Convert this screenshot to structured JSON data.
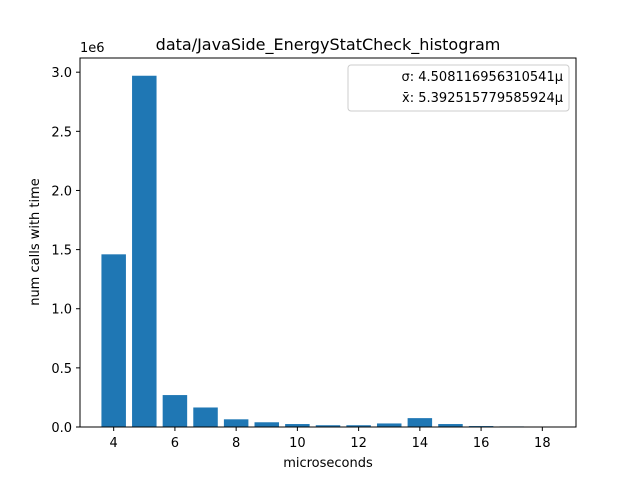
{
  "chart_data": {
    "type": "bar",
    "title": "data/JavaSide_EnergyStatCheck_histogram",
    "xlabel": "microseconds",
    "ylabel": "num calls with time",
    "y_offset_label": "1e6",
    "x": [
      4,
      5,
      6,
      7,
      8,
      9,
      10,
      11,
      12,
      13,
      14,
      15,
      16,
      17,
      18
    ],
    "values": [
      1460000,
      2970000,
      270000,
      165000,
      65000,
      40000,
      25000,
      15000,
      15000,
      30000,
      75000,
      25000,
      8000,
      5000,
      2000
    ],
    "xlim": [
      2.9,
      19.1
    ],
    "ylim": [
      0,
      3120000
    ],
    "x_ticks": [
      4,
      6,
      8,
      10,
      12,
      14,
      16,
      18
    ],
    "y_ticks": [
      0,
      500000,
      1000000,
      1500000,
      2000000,
      2500000,
      3000000
    ],
    "y_tick_labels": [
      "0.0",
      "0.5",
      "1.0",
      "1.5",
      "2.0",
      "2.5",
      "3.0"
    ],
    "bar_color": "#1f77b4",
    "grid": false,
    "legend_position": "upper right",
    "legend": [
      "σ: 4.508116956310541μ",
      "x̄: 5.392515779585924μ"
    ]
  }
}
